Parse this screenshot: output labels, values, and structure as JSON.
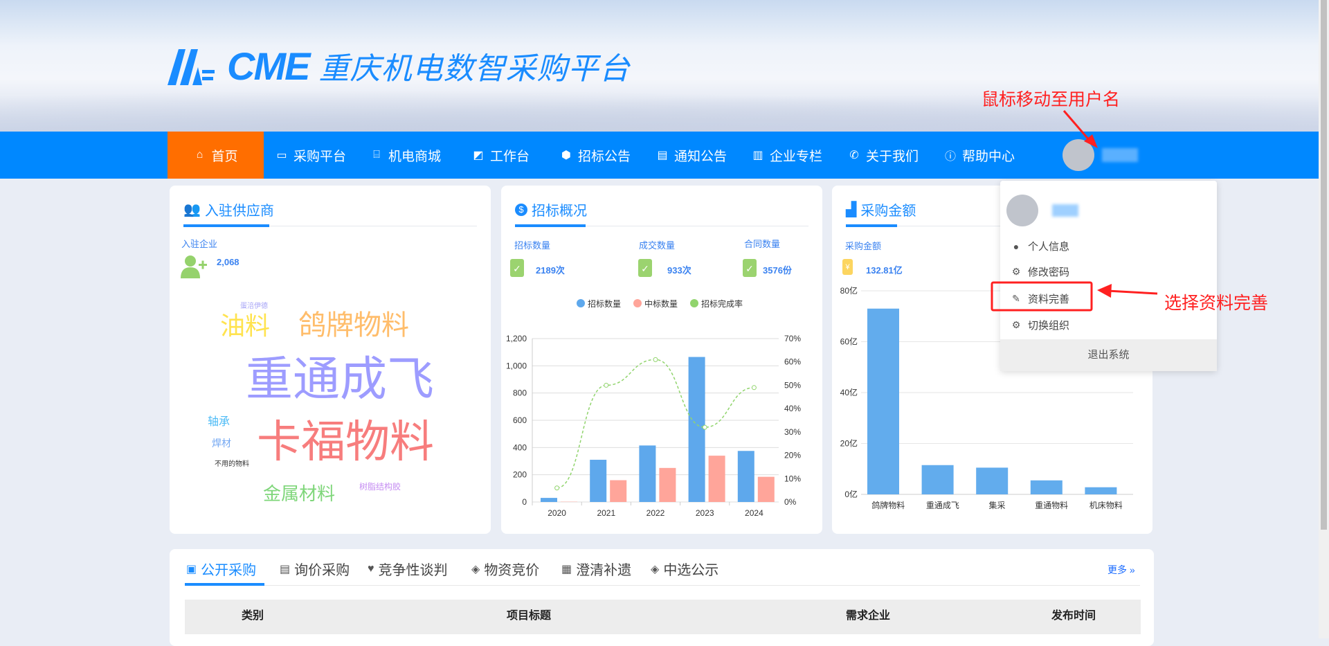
{
  "header": {
    "logo_text": "CME",
    "platform_name": "重庆机电数智采购平台"
  },
  "nav": {
    "items": [
      {
        "label": "首页",
        "icon": "home-icon",
        "active": true
      },
      {
        "label": "采购平台",
        "icon": "monitor-icon"
      },
      {
        "label": "机电商城",
        "icon": "shop-icon"
      },
      {
        "label": "工作台",
        "icon": "chart-line-icon"
      },
      {
        "label": "招标公告",
        "icon": "cube-icon"
      },
      {
        "label": "通知公告",
        "icon": "clipboard-icon"
      },
      {
        "label": "企业专栏",
        "icon": "building-icon"
      },
      {
        "label": "关于我们",
        "icon": "phone-icon"
      },
      {
        "label": "帮助中心",
        "icon": "info-icon"
      }
    ]
  },
  "annotations": {
    "hover_hint": "鼠标移动至用户名",
    "select_hint": "选择资料完善",
    "accent": "#ff2020"
  },
  "user_menu": {
    "items": [
      {
        "label": "个人信息",
        "icon": "user-icon"
      },
      {
        "label": "修改密码",
        "icon": "gear-icon"
      },
      {
        "label": "资料完善",
        "icon": "edit-icon"
      },
      {
        "label": "切换组织",
        "icon": "gear-icon"
      }
    ],
    "logout": "退出系统"
  },
  "suppliers": {
    "title": "入驻供应商",
    "label": "入驻企业",
    "value": "2,068",
    "word_cloud": [
      {
        "text": "蛋涪伊德",
        "color": "#a7a4f7"
      },
      {
        "text": "油料",
        "color": "#ffe34f"
      },
      {
        "text": "鸽牌物料",
        "color": "#ffbd6b"
      },
      {
        "text": "重通成飞",
        "color": "#9d9cff"
      },
      {
        "text": "轴承",
        "color": "#4dbbf6"
      },
      {
        "text": "焊材",
        "color": "#74a8f3"
      },
      {
        "text": "卡福物料",
        "color": "#f77d7d"
      },
      {
        "text": "不用的物料",
        "color": "#333333"
      },
      {
        "text": "金属材料",
        "color": "#7fd67a"
      },
      {
        "text": "树脂结构胶",
        "color": "#c58cf2"
      }
    ]
  },
  "bidding": {
    "title": "招标概况",
    "stats": [
      {
        "label": "招标数量",
        "value": "2189次"
      },
      {
        "label": "成交数量",
        "value": "933次"
      },
      {
        "label": "合同数量",
        "value": "3576份"
      }
    ]
  },
  "purchase": {
    "title": "采购金额",
    "label": "采购金额",
    "value": "132.81亿"
  },
  "chart_data": [
    {
      "type": "bar",
      "categories": [
        "2020",
        "2021",
        "2022",
        "2023",
        "2024"
      ],
      "series": [
        {
          "name": "招标数量",
          "type": "bar",
          "color": "#5ea8ec",
          "values": [
            30,
            310,
            415,
            1065,
            375
          ]
        },
        {
          "name": "中标数量",
          "type": "bar",
          "color": "#ffa59a",
          "values": [
            2,
            160,
            250,
            340,
            185
          ]
        },
        {
          "name": "招标完成率",
          "type": "line",
          "axis": "right",
          "color": "#91d46d",
          "values": [
            6,
            50,
            61,
            32,
            49
          ]
        }
      ],
      "ylim": [
        0,
        1200
      ],
      "yticks": [
        "0",
        "200",
        "400",
        "600",
        "800",
        "1,000",
        "1,200"
      ],
      "y2lim": [
        0,
        70
      ],
      "y2ticks": [
        "0%",
        "10%",
        "20%",
        "30%",
        "40%",
        "50%",
        "60%",
        "70%"
      ],
      "legend": "top",
      "grid": true
    },
    {
      "type": "bar",
      "categories": [
        "鸽牌物料",
        "重通成飞",
        "集采",
        "重通物料",
        "机床物料"
      ],
      "values": [
        73,
        11.5,
        10.5,
        5.5,
        2.8
      ],
      "color": "#62aced",
      "ylim": [
        0,
        80
      ],
      "yticks": [
        "0亿",
        "20亿",
        "40亿",
        "60亿",
        "80亿"
      ],
      "grid": true
    }
  ],
  "tabs": {
    "items": [
      {
        "label": "公开采购",
        "icon": "box-icon",
        "active": true
      },
      {
        "label": "询价采购",
        "icon": "form-icon"
      },
      {
        "label": "竞争性谈判",
        "icon": "handshake-icon"
      },
      {
        "label": "物资竞价",
        "icon": "layers-icon"
      },
      {
        "label": "澄清补遗",
        "icon": "news-icon"
      },
      {
        "label": "中选公示",
        "icon": "layers-icon"
      }
    ],
    "more": "更多"
  },
  "table": {
    "columns": [
      "类别",
      "项目标题",
      "需求企业",
      "发布时间"
    ]
  }
}
